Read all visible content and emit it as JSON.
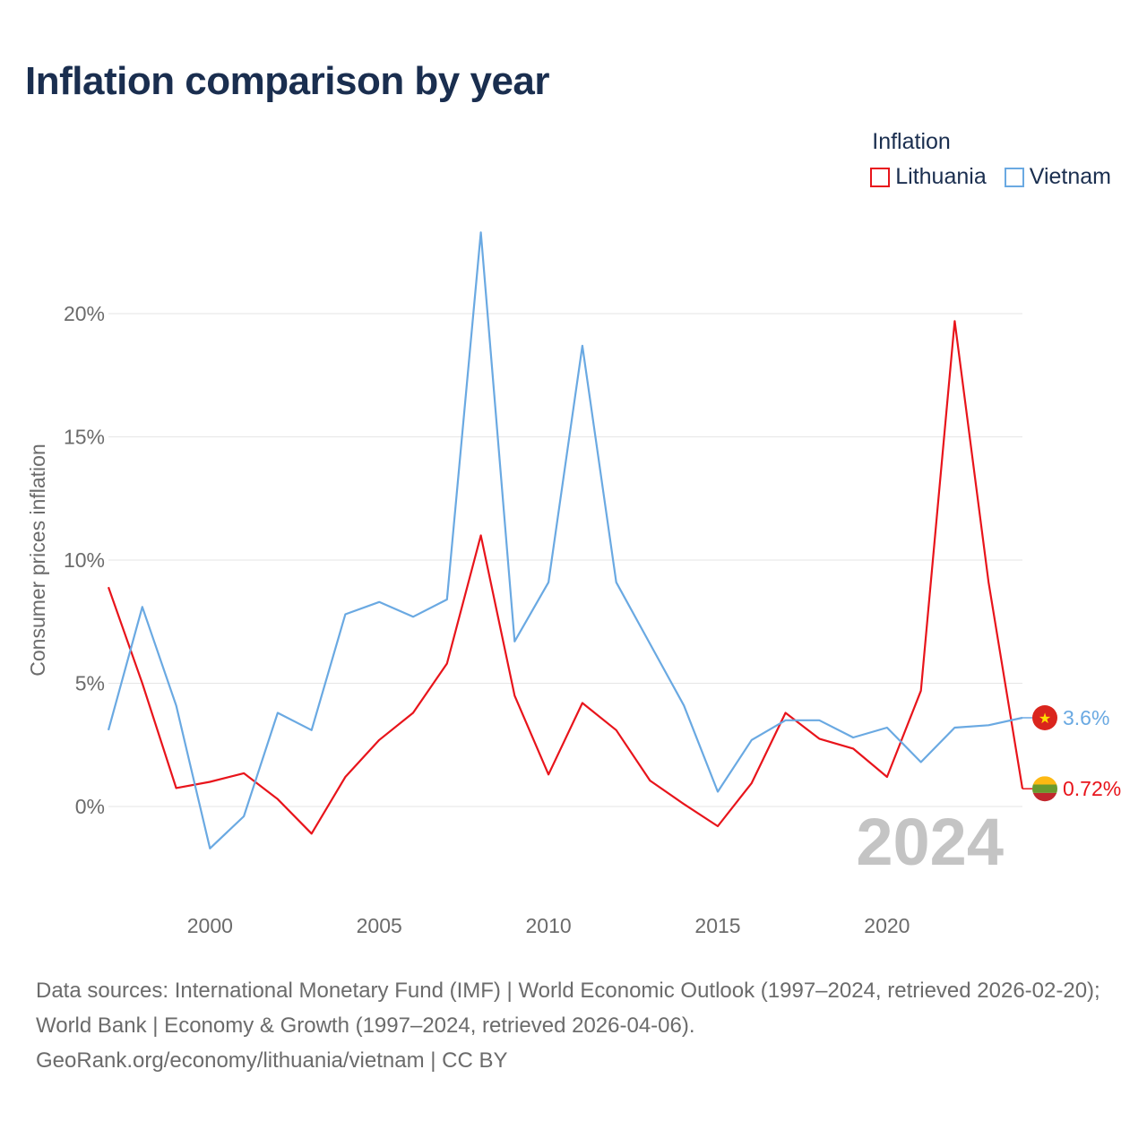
{
  "title": "Inflation comparison by year",
  "legend": {
    "title": "Inflation",
    "items": [
      {
        "label": "Lithuania",
        "color": "#e8141b"
      },
      {
        "label": "Vietnam",
        "color": "#6aa9e2"
      }
    ]
  },
  "chart_data": {
    "type": "line",
    "ylabel": "Consumer prices inflation",
    "xlabel": "",
    "xlim": [
      1997,
      2024
    ],
    "ylim": [
      -4,
      24
    ],
    "x_ticks": [
      2000,
      2005,
      2010,
      2015,
      2020
    ],
    "y_ticks": [
      {
        "value": 0,
        "label": "0%"
      },
      {
        "value": 5,
        "label": "5%"
      },
      {
        "value": 10,
        "label": "10%"
      },
      {
        "value": 15,
        "label": "15%"
      },
      {
        "value": 20,
        "label": "20%"
      }
    ],
    "x": [
      1997,
      1998,
      1999,
      2000,
      2001,
      2002,
      2003,
      2004,
      2005,
      2006,
      2007,
      2008,
      2009,
      2010,
      2011,
      2012,
      2013,
      2014,
      2015,
      2016,
      2017,
      2018,
      2019,
      2020,
      2021,
      2022,
      2023,
      2024
    ],
    "series": [
      {
        "name": "Lithuania",
        "color": "#e8141b",
        "end_label": "0.72%",
        "values": [
          8.9,
          5.0,
          0.75,
          1.0,
          1.35,
          0.3,
          -1.1,
          1.2,
          2.7,
          3.8,
          5.8,
          11.0,
          4.5,
          1.3,
          4.2,
          3.1,
          1.05,
          0.1,
          -0.8,
          0.95,
          3.8,
          2.75,
          2.35,
          1.2,
          4.7,
          19.7,
          9.1,
          0.72
        ]
      },
      {
        "name": "Vietnam",
        "color": "#6aa9e2",
        "end_label": "3.6%",
        "values": [
          3.1,
          8.1,
          4.1,
          -1.7,
          -0.4,
          3.8,
          3.1,
          7.8,
          8.3,
          7.7,
          8.4,
          23.3,
          6.7,
          9.1,
          18.7,
          9.1,
          6.6,
          4.1,
          0.6,
          2.7,
          3.5,
          3.5,
          2.8,
          3.2,
          1.8,
          3.2,
          3.3,
          3.6
        ]
      }
    ],
    "year_watermark": "2024"
  },
  "footer": {
    "sources": "Data sources: International Monetary Fund (IMF) | World Economic Outlook (1997–2024, retrieved 2026-02-20); World Bank | Economy & Growth (1997–2024, retrieved 2026-04-06).",
    "credit": "GeoRank.org/economy/lithuania/vietnam | CC BY"
  }
}
